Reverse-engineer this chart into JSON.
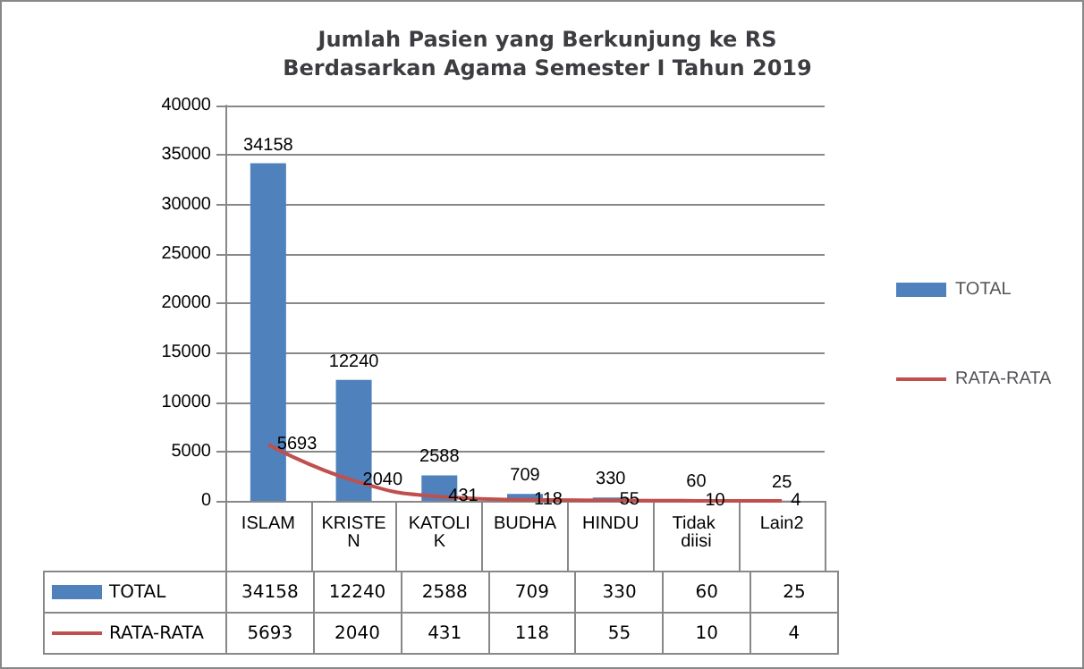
{
  "chart_data": {
    "type": "bar",
    "title": "Jumlah Pasien yang Berkunjung ke RS\nBerdasarkan Agama Semester I Tahun 2019",
    "categories": [
      "ISLAM",
      "KRISTEN",
      "KATOLIK",
      "BUDHA",
      "HINDU",
      "Tidak diisi",
      "Lain2"
    ],
    "series": [
      {
        "name": "TOTAL",
        "color": "#4f81bd",
        "values": [
          34158,
          12240,
          2588,
          709,
          330,
          60,
          25
        ],
        "value_labels": [
          "34158",
          "12240",
          "2588",
          "709",
          "330",
          "60",
          "25"
        ]
      },
      {
        "name": "RATA-RATA",
        "type": "line",
        "color": "#c0504d",
        "values": [
          5693,
          2040,
          431,
          118,
          55,
          10,
          4
        ],
        "value_labels": [
          "5693",
          "2040",
          "431",
          "118",
          "55",
          "10",
          "4"
        ]
      }
    ],
    "ylim": [
      0,
      40000
    ],
    "yticks": [
      0,
      5000,
      10000,
      15000,
      20000,
      25000,
      30000,
      35000,
      40000
    ],
    "grid": "y",
    "legend": "right",
    "marker": "none",
    "line_style": "solid",
    "data_labels": true
  }
}
